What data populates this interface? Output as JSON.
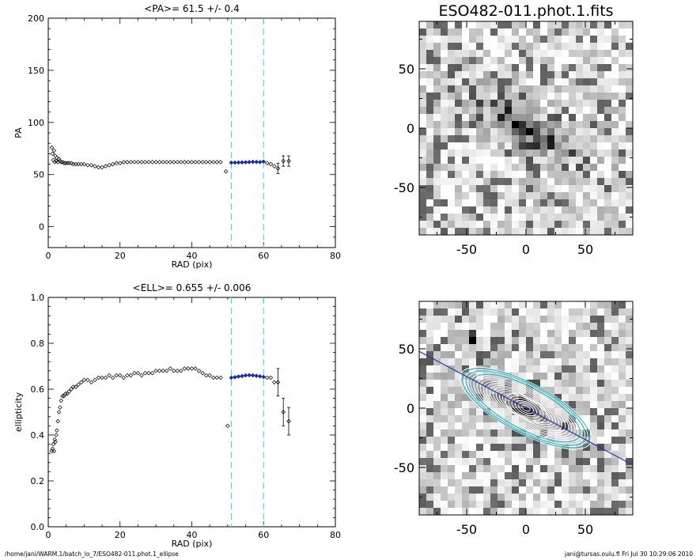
{
  "chart_data": [
    {
      "type": "scatter",
      "title": "<PA>=  61.5 +/-   0.4",
      "xlabel": "RAD (pix)",
      "ylabel": "PA",
      "xlim": [
        0,
        80
      ],
      "ylim": [
        -20,
        200
      ],
      "xticks": [
        0,
        20,
        40,
        60,
        80
      ],
      "yticks": [
        0,
        50,
        100,
        150,
        200
      ],
      "fit_range": [
        51,
        60
      ],
      "series": [
        {
          "values_x": [
            1.0,
            1.2,
            1.4,
            1.6,
            1.8,
            2.0,
            2.2,
            2.4,
            2.7,
            3.0,
            3.3,
            3.6,
            4.0,
            4.4,
            4.8,
            5.3,
            5.8,
            6.4,
            7.0,
            7.7,
            8.4,
            9.2,
            10.0,
            11.0,
            12.0,
            13.0,
            14.0,
            15.0,
            16.0,
            17.0,
            18.0,
            19.0,
            20.0,
            21.0,
            22.0,
            23.0,
            24.0,
            25.0,
            26.0,
            27.0,
            28.0,
            29.0,
            30.0,
            31.0,
            32.0,
            33.0,
            34.0,
            35.0,
            36.0,
            37.0,
            38.0,
            39.0,
            40.0,
            41.0,
            42.0,
            43.0,
            44.0,
            45.0,
            46.0,
            47.0,
            48.0,
            49.5
          ],
          "values_y": [
            76,
            70,
            64,
            73,
            62,
            68,
            63,
            66,
            62,
            65,
            63,
            62,
            62,
            61,
            61,
            61,
            61,
            61,
            60,
            60,
            60,
            60,
            60,
            59,
            59,
            58,
            57,
            57,
            58,
            59,
            60,
            61,
            61,
            62,
            62,
            62,
            62,
            62,
            62,
            62,
            62,
            62,
            62,
            62,
            62,
            62,
            62,
            62,
            62,
            62,
            62,
            62,
            62,
            62,
            62,
            62,
            62,
            62,
            62,
            62,
            62,
            53
          ]
        },
        {
          "values_x": [
            51,
            52,
            53,
            54,
            55,
            56,
            57,
            58,
            59,
            60
          ],
          "values_y": [
            61.5,
            61.5,
            61.6,
            61.7,
            61.8,
            62.0,
            62.2,
            62.1,
            62.0,
            62.5
          ],
          "color": "#1a2aa8"
        },
        {
          "values_x": [
            61,
            62,
            63,
            64,
            65.5,
            67
          ],
          "values_y": [
            61,
            60,
            58,
            56,
            63,
            63
          ]
        }
      ]
    },
    {
      "type": "scatter",
      "title": "<ELL>= 0.655 +/-  0.006",
      "xlabel": "RAD (pix)",
      "ylabel": "ellipticity",
      "xlim": [
        0,
        80
      ],
      "ylim": [
        0.0,
        1.0
      ],
      "xticks": [
        0,
        20,
        40,
        60,
        80
      ],
      "yticks": [
        "0.0",
        "0.2",
        "0.4",
        "0.6",
        "0.8",
        "1.0"
      ],
      "fit_range": [
        51,
        60
      ],
      "series": [
        {
          "values_x": [
            1.0,
            1.2,
            1.4,
            1.6,
            1.8,
            2.0,
            2.2,
            2.4,
            2.7,
            3.0,
            3.3,
            3.6,
            4.0,
            4.4,
            4.8,
            5.3,
            5.8,
            6.4,
            7.0,
            7.7,
            8.4,
            9.2,
            10.0,
            11.0,
            12.0,
            13.0,
            14.0,
            15.0,
            16.0,
            17.0,
            18.0,
            19.0,
            20.0,
            21.0,
            22.0,
            23.0,
            24.0,
            25.0,
            26.0,
            27.0,
            28.0,
            29.0,
            30.0,
            31.0,
            32.0,
            33.0,
            34.0,
            35.0,
            36.0,
            37.0,
            38.0,
            39.0,
            40.0,
            41.0,
            42.0,
            43.0,
            44.0,
            45.0,
            46.0,
            47.0,
            48.0,
            50.0
          ],
          "values_y": [
            0.33,
            0.34,
            0.36,
            0.33,
            0.38,
            0.37,
            0.4,
            0.42,
            0.46,
            0.5,
            0.52,
            0.55,
            0.57,
            0.57,
            0.58,
            0.58,
            0.59,
            0.6,
            0.61,
            0.61,
            0.62,
            0.63,
            0.64,
            0.64,
            0.63,
            0.64,
            0.65,
            0.65,
            0.65,
            0.66,
            0.65,
            0.66,
            0.66,
            0.65,
            0.66,
            0.66,
            0.67,
            0.67,
            0.66,
            0.67,
            0.67,
            0.67,
            0.68,
            0.68,
            0.68,
            0.68,
            0.69,
            0.68,
            0.68,
            0.68,
            0.69,
            0.69,
            0.69,
            0.69,
            0.68,
            0.67,
            0.66,
            0.66,
            0.65,
            0.65,
            0.65,
            0.44
          ]
        },
        {
          "values_x": [
            51,
            52,
            53,
            54,
            55,
            56,
            57,
            58,
            59,
            60
          ],
          "values_y": [
            0.65,
            0.652,
            0.655,
            0.657,
            0.66,
            0.661,
            0.66,
            0.658,
            0.656,
            0.653
          ],
          "color": "#1a2aa8"
        },
        {
          "values_x": [
            61,
            62,
            63,
            64,
            65.5,
            67
          ],
          "values_y": [
            0.65,
            0.65,
            0.63,
            0.63,
            0.5,
            0.46
          ]
        }
      ]
    },
    {
      "type": "heatmap",
      "title": "ESO482-011.phot.1.fits",
      "xlim": [
        -90,
        90
      ],
      "ylim": [
        -90,
        90
      ],
      "xticks": [
        -50,
        0,
        50
      ],
      "yticks": [
        -50,
        0,
        50
      ]
    },
    {
      "type": "heatmap",
      "title": "",
      "xlim": [
        -90,
        90
      ],
      "ylim": [
        -90,
        90
      ],
      "xticks": [
        -50,
        0,
        50
      ],
      "yticks": [
        -50,
        0,
        50
      ]
    }
  ],
  "footer": {
    "path": "/home/jani/WARM.1/batch_lo_7/ESO482-011.phot.1_ellipse",
    "user_date": "jani@tursas.oulu.fi  Fri Jul 30 10:29:06 2010"
  }
}
